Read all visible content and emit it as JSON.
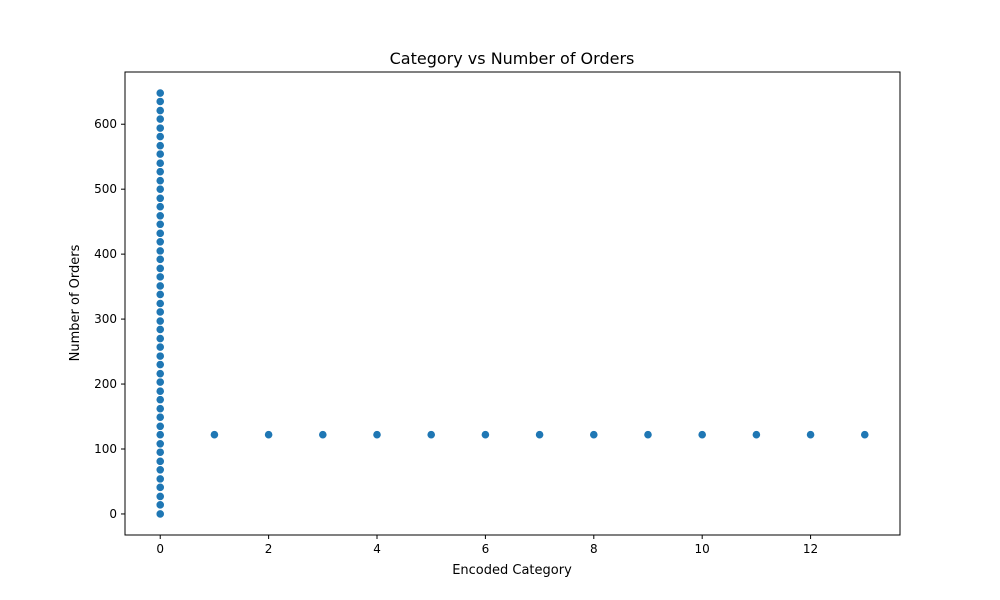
{
  "chart_data": {
    "type": "scatter",
    "title": "Category vs Number of Orders",
    "xlabel": "Encoded Category",
    "ylabel": "Number of Orders",
    "xlim": [
      -0.65,
      13.65
    ],
    "ylim": [
      -32.4,
      680.4
    ],
    "xticks": [
      0,
      2,
      4,
      6,
      8,
      10,
      12
    ],
    "yticks": [
      0,
      100,
      200,
      300,
      400,
      500,
      600
    ],
    "grid": false,
    "legend": "none",
    "marker_color": "#1f77b4",
    "series": [
      {
        "points": [
          [
            0,
            0
          ],
          [
            0,
            14
          ],
          [
            0,
            27
          ],
          [
            0,
            41
          ],
          [
            0,
            54
          ],
          [
            0,
            68
          ],
          [
            0,
            81
          ],
          [
            0,
            95
          ],
          [
            0,
            108
          ],
          [
            0,
            122
          ],
          [
            0,
            135
          ],
          [
            0,
            149
          ],
          [
            0,
            162
          ],
          [
            0,
            176
          ],
          [
            0,
            189
          ],
          [
            0,
            203
          ],
          [
            0,
            216
          ],
          [
            0,
            230
          ],
          [
            0,
            243
          ],
          [
            0,
            257
          ],
          [
            0,
            270
          ],
          [
            0,
            284
          ],
          [
            0,
            297
          ],
          [
            0,
            311
          ],
          [
            0,
            324
          ],
          [
            0,
            338
          ],
          [
            0,
            351
          ],
          [
            0,
            365
          ],
          [
            0,
            378
          ],
          [
            0,
            392
          ],
          [
            0,
            405
          ],
          [
            0,
            419
          ],
          [
            0,
            432
          ],
          [
            0,
            446
          ],
          [
            0,
            459
          ],
          [
            0,
            473
          ],
          [
            0,
            486
          ],
          [
            0,
            500
          ],
          [
            0,
            513
          ],
          [
            0,
            527
          ],
          [
            0,
            540
          ],
          [
            0,
            554
          ],
          [
            0,
            567
          ],
          [
            0,
            581
          ],
          [
            0,
            594
          ],
          [
            0,
            608
          ],
          [
            0,
            621
          ],
          [
            0,
            635
          ],
          [
            0,
            648
          ],
          [
            1,
            122
          ],
          [
            2,
            122
          ],
          [
            3,
            122
          ],
          [
            4,
            122
          ],
          [
            5,
            122
          ],
          [
            6,
            122
          ],
          [
            7,
            122
          ],
          [
            8,
            122
          ],
          [
            9,
            122
          ],
          [
            10,
            122
          ],
          [
            11,
            122
          ],
          [
            12,
            122
          ],
          [
            13,
            122
          ]
        ]
      }
    ]
  }
}
